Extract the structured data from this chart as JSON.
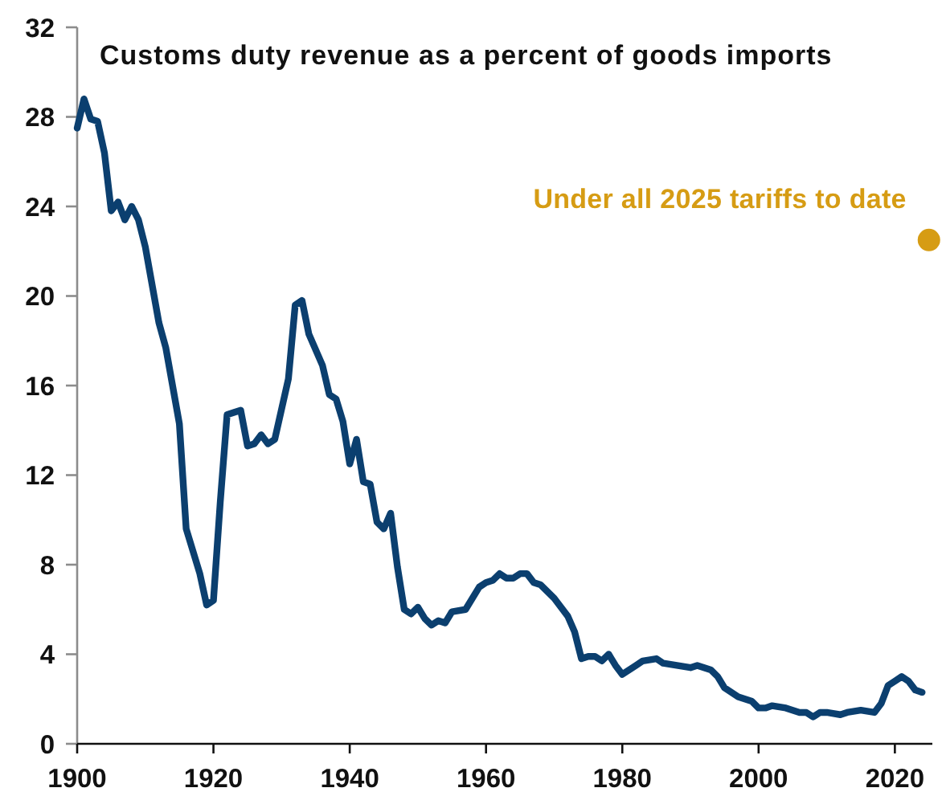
{
  "chart_data": {
    "type": "line",
    "title": "Customs duty revenue as a percent of goods imports",
    "xlim": [
      1900,
      2025.5
    ],
    "xticks": [
      1900,
      1920,
      1940,
      1960,
      1980,
      2000,
      2020
    ],
    "ylim": [
      0,
      32
    ],
    "yticks": [
      0,
      4,
      8,
      12,
      16,
      20,
      24,
      28,
      32
    ],
    "series": [
      {
        "color": "#0b3f6f",
        "x": [
          1900,
          1901,
          1902,
          1903,
          1904,
          1905,
          1906,
          1907,
          1908,
          1909,
          1910,
          1912,
          1913,
          1915,
          1916,
          1918,
          1919,
          1920,
          1921,
          1922,
          1924,
          1925,
          1926,
          1927,
          1928,
          1929,
          1931,
          1932,
          1933,
          1934,
          1936,
          1937,
          1938,
          1939,
          1940,
          1941,
          1942,
          1943,
          1944,
          1945,
          1946,
          1947,
          1948,
          1949,
          1950,
          1951,
          1952,
          1953,
          1954,
          1955,
          1957,
          1959,
          1960,
          1961,
          1962,
          1963,
          1964,
          1965,
          1966,
          1967,
          1968,
          1970,
          1972,
          1973,
          1974,
          1975,
          1976,
          1977,
          1978,
          1979,
          1980,
          1982,
          1983,
          1985,
          1986,
          1988,
          1990,
          1991,
          1993,
          1994,
          1995,
          1997,
          1999,
          2000,
          2001,
          2002,
          2004,
          2006,
          2007,
          2008,
          2009,
          2010,
          2012,
          2013,
          2015,
          2017,
          2018,
          2019,
          2020,
          2021,
          2022,
          2023,
          2024
        ],
        "values": [
          27.5,
          28.8,
          27.9,
          27.8,
          26.4,
          23.8,
          24.2,
          23.4,
          24.0,
          23.4,
          22.2,
          18.8,
          17.7,
          14.3,
          9.6,
          7.6,
          6.2,
          6.4,
          10.8,
          14.7,
          14.9,
          13.3,
          13.4,
          13.8,
          13.4,
          13.6,
          16.3,
          19.6,
          19.8,
          18.3,
          16.9,
          15.6,
          15.4,
          14.4,
          12.5,
          13.6,
          11.7,
          11.6,
          9.9,
          9.6,
          10.3,
          7.9,
          6.0,
          5.8,
          6.1,
          5.6,
          5.3,
          5.5,
          5.4,
          5.9,
          6.0,
          7.0,
          7.2,
          7.3,
          7.6,
          7.4,
          7.4,
          7.6,
          7.6,
          7.2,
          7.1,
          6.5,
          5.7,
          5.0,
          3.8,
          3.9,
          3.9,
          3.7,
          4.0,
          3.5,
          3.1,
          3.5,
          3.7,
          3.8,
          3.6,
          3.5,
          3.4,
          3.5,
          3.3,
          3.0,
          2.5,
          2.1,
          1.9,
          1.6,
          1.6,
          1.7,
          1.6,
          1.4,
          1.4,
          1.2,
          1.4,
          1.4,
          1.3,
          1.4,
          1.5,
          1.4,
          1.8,
          2.6,
          2.8,
          3.0,
          2.8,
          2.4,
          2.3
        ]
      },
      {
        "type": "scatter",
        "name": "Under all 2025 tariffs to date",
        "color": "#d69c14",
        "marker": "circle",
        "x": [
          2025
        ],
        "values": [
          22.5
        ]
      }
    ]
  }
}
